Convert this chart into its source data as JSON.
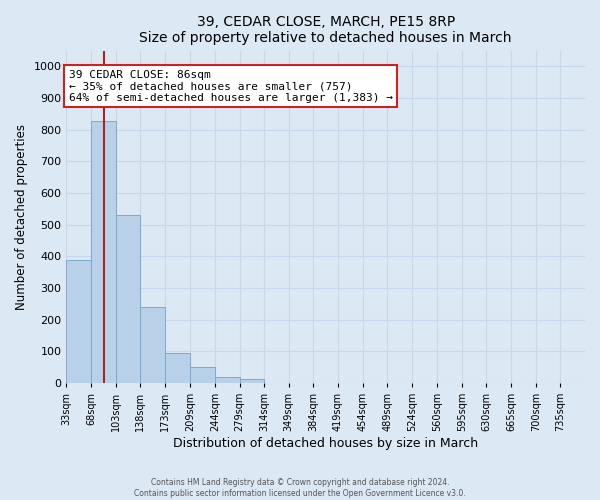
{
  "title": "39, CEDAR CLOSE, MARCH, PE15 8RP",
  "subtitle": "Size of property relative to detached houses in March",
  "xlabel": "Distribution of detached houses by size in March",
  "ylabel": "Number of detached properties",
  "bar_labels": [
    "33sqm",
    "68sqm",
    "103sqm",
    "138sqm",
    "173sqm",
    "209sqm",
    "244sqm",
    "279sqm",
    "314sqm",
    "349sqm",
    "384sqm",
    "419sqm",
    "454sqm",
    "489sqm",
    "524sqm",
    "560sqm",
    "595sqm",
    "630sqm",
    "665sqm",
    "700sqm",
    "735sqm"
  ],
  "bar_values": [
    390,
    828,
    530,
    240,
    95,
    52,
    20,
    14,
    0,
    0,
    0,
    0,
    0,
    0,
    0,
    0,
    0,
    0,
    0,
    0,
    0
  ],
  "bar_color": "#b8d0e8",
  "bar_edge_color": "#7aaace",
  "grid_color": "#c8d8ec",
  "background_color": "#dce8f4",
  "ylim": [
    0,
    1050
  ],
  "yticks": [
    0,
    100,
    200,
    300,
    400,
    500,
    600,
    700,
    800,
    900,
    1000
  ],
  "vline_color": "#aa2222",
  "annotation_title": "39 CEDAR CLOSE: 86sqm",
  "annotation_line1": "← 35% of detached houses are smaller (757)",
  "annotation_line2": "64% of semi-detached houses are larger (1,383) →",
  "annotation_box_color": "#ffffff",
  "annotation_box_edge": "#cc2222",
  "footer_line1": "Contains HM Land Registry data © Crown copyright and database right 2024.",
  "footer_line2": "Contains public sector information licensed under the Open Government Licence v3.0.",
  "bin_starts": [
    33,
    68,
    103,
    138,
    173,
    209,
    244,
    279,
    314,
    349,
    384,
    419,
    454,
    489,
    524,
    560,
    595,
    630,
    665,
    700,
    735
  ],
  "bin_width": 35,
  "property_size": 86
}
